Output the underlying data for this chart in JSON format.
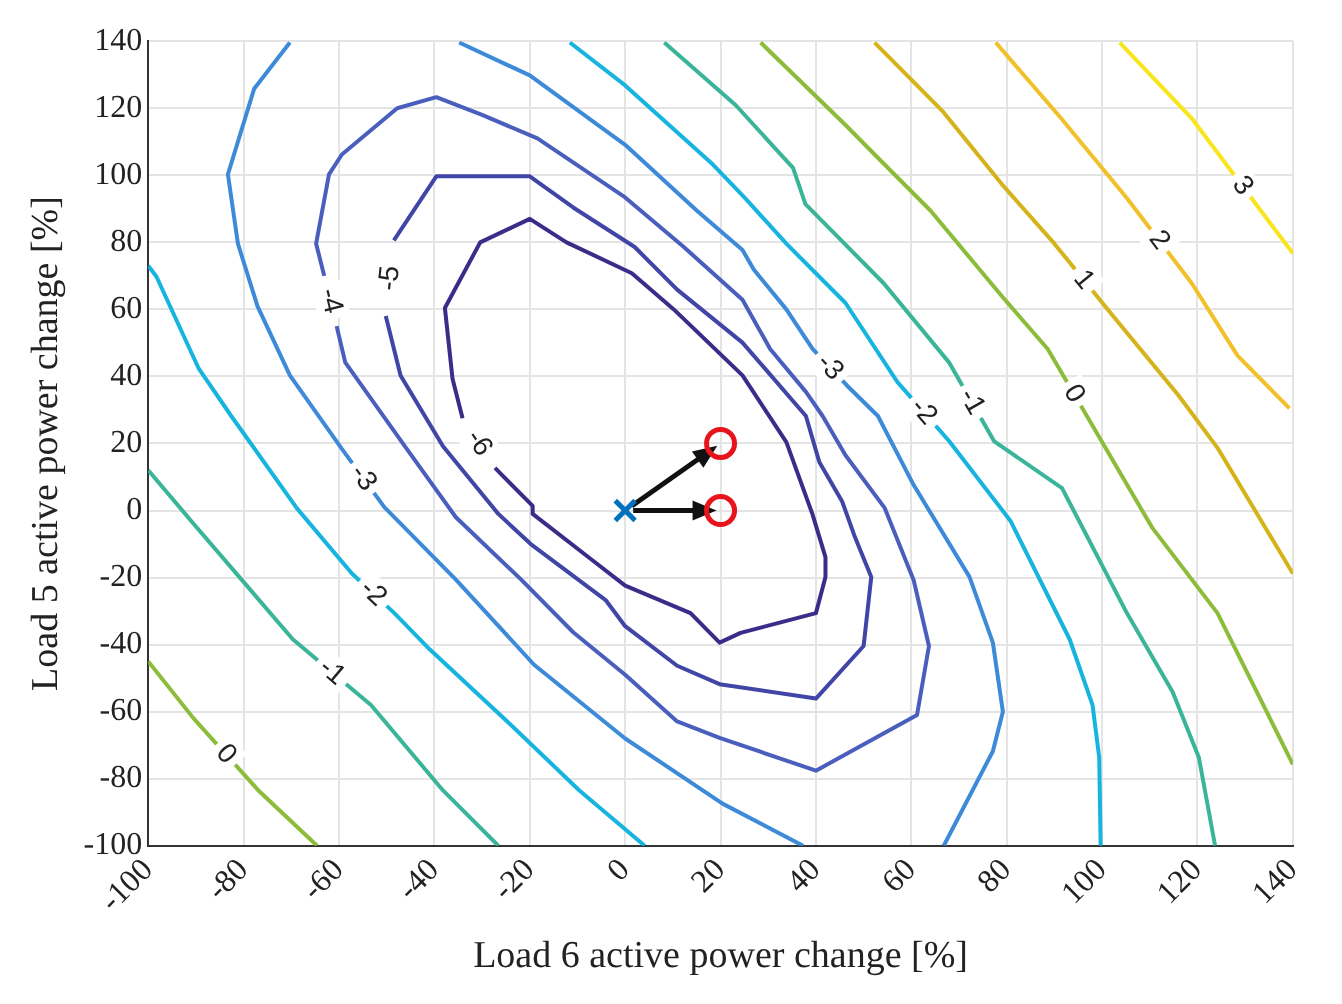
{
  "chart_data": {
    "type": "line",
    "xlabel": "Load 6 active power change [%]",
    "ylabel": "Load 5 active power change [%]",
    "xlim": [
      -100,
      140
    ],
    "ylim": [
      -100,
      140
    ],
    "xticks": [
      -100,
      -80,
      -60,
      -40,
      -20,
      0,
      20,
      40,
      60,
      80,
      100,
      120,
      140
    ],
    "yticks": [
      -100,
      -80,
      -60,
      -40,
      -20,
      0,
      20,
      40,
      60,
      80,
      100,
      120,
      140
    ],
    "grid": true,
    "legend": false,
    "marker": "none",
    "series": [
      {
        "name": "-6",
        "color": "#3b2c8a",
        "x": [
          -34.1,
          -36.2,
          -37.8,
          -30.4,
          -20,
          -12.3,
          1.4,
          10.2,
          24.6,
          33.8,
          39.3,
          42,
          42,
          40,
          24.2,
          19.8,
          13.7,
          0,
          -6.8,
          -19.4,
          -19.4,
          -27.3
        ],
        "values": [
          27.5,
          39.3,
          60.4,
          80,
          87,
          80,
          70.8,
          60,
          40.3,
          20.4,
          -1.2,
          -13.9,
          -19.8,
          -30.6,
          -36.5,
          -39.4,
          -30.6,
          -22.4,
          -14.9,
          -1,
          1.4,
          12.7
        ]
      },
      {
        "name": "-5",
        "color": "#4145a6",
        "x": [
          -48.5,
          -39.6,
          -20,
          -10.9,
          2,
          10.9,
          24.6,
          37.9,
          40.7,
          45.5,
          48.2,
          51.6,
          50,
          40,
          19.8,
          10.9,
          0,
          -4.1,
          -19.8,
          -26.6,
          -38.2,
          -47.1,
          -50.2
        ],
        "values": [
          80.6,
          99.7,
          99.7,
          90.4,
          78.6,
          65.9,
          50.1,
          28.2,
          14.5,
          2.7,
          -8,
          -19.8,
          -40.4,
          -56.1,
          -51.8,
          -46.3,
          -34.5,
          -26.7,
          -10,
          -1,
          19.2,
          40.3,
          58
        ]
      },
      {
        "name": "-4",
        "color": "#4a5fbd",
        "x": [
          -63.1,
          -64.8,
          -62.1,
          -59.4,
          -47.8,
          -39.6,
          -30,
          -18.4,
          0,
          12.3,
          24.6,
          30.4,
          37.9,
          41.4,
          46.2,
          54.4,
          60.5,
          63.7,
          61.2,
          40,
          19.8,
          10.9,
          0,
          -10.9,
          -21.8,
          -35.5,
          -46.4,
          -58.7,
          -60.5
        ],
        "values": [
          70,
          79.6,
          100.3,
          106.2,
          120,
          123.3,
          118,
          111,
          93.4,
          78.6,
          62.9,
          48.2,
          35.4,
          28.2,
          16.5,
          0.8,
          -20.8,
          -40.4,
          -61,
          -77.6,
          -67.8,
          -62.9,
          -49,
          -36.3,
          -20.6,
          -2,
          19.6,
          44.2,
          55
        ]
      },
      {
        "name": "-3",
        "color": "#3d8ad9",
        "x": [
          -70.3,
          -77.8,
          -83.3,
          -81.2,
          -77.1,
          -70.3,
          -59.4,
          -50.5,
          -35.5,
          -19.1,
          0,
          20.5,
          37.3
        ],
        "values": [
          139.6,
          125.8,
          100.3,
          79.6,
          61,
          40.3,
          18.4,
          1,
          -20.6,
          -46,
          -68,
          -87.5,
          -100
        ]
      },
      {
        "name": "-3",
        "color": "#3d8ad9",
        "x": [
          -34.8,
          -20,
          0,
          15,
          24.6,
          27,
          33.8,
          39.3,
          46.5,
          53,
          60.5,
          72.2,
          77.1,
          79.2,
          77.1,
          66.8
        ],
        "values": [
          139.6,
          129.8,
          109.1,
          89.5,
          77.7,
          71.8,
          60,
          48.2,
          37.3,
          28.2,
          7.6,
          -19.8,
          -39.4,
          -60,
          -71.8,
          -100
        ]
      },
      {
        "name": "-2",
        "color": "#17b4e0",
        "x": [
          -100,
          -98.3,
          -89.4,
          -82.6,
          -68.9,
          -57.3,
          -48.4,
          -41,
          -24,
          -9.6,
          4.1
        ],
        "values": [
          73,
          69.8,
          42.3,
          28.2,
          0.8,
          -18.8,
          -30.6,
          -41.4,
          -63.9,
          -83.5,
          -100
        ]
      },
      {
        "name": "-2",
        "color": "#17b4e0",
        "x": [
          -11.6,
          0,
          18.4,
          25,
          33.8,
          46.2,
          57.1,
          68,
          80.8,
          93.2,
          98,
          99.4,
          99.7
        ],
        "values": [
          139.6,
          126.8,
          103.2,
          93.4,
          79.6,
          61.9,
          38.3,
          20.6,
          -3.1,
          -38.4,
          -58,
          -73.7,
          -100
        ]
      },
      {
        "name": "-1",
        "color": "#3bb59a",
        "x": [
          -100,
          -91,
          -69.7,
          -53.3,
          -38.2,
          -26.6
        ],
        "values": [
          12,
          -3.1,
          -38.4,
          -58,
          -83.5,
          -100
        ]
      },
      {
        "name": "-1",
        "color": "#3bb59a",
        "x": [
          8.2,
          23.2,
          35.2,
          37.8,
          54.2,
          67.9,
          77.4,
          91.6,
          105.2,
          114.8,
          120.3,
          123.7
        ],
        "values": [
          139.6,
          120.9,
          102.2,
          91.4,
          67.8,
          44.2,
          20.6,
          6.7,
          -30.6,
          -54.1,
          -73.7,
          -100
        ]
      },
      {
        "name": "0",
        "color": "#8cbc3a",
        "x": [
          -100,
          -90.5,
          -76.9,
          -64.6
        ],
        "values": [
          -45,
          -62,
          -83.5,
          -100
        ]
      },
      {
        "name": "0",
        "color": "#8cbc3a",
        "x": [
          28.4,
          46.2,
          52.3,
          64,
          79,
          88.6,
          99.6,
          110.5,
          124.2,
          133.8,
          140
        ],
        "values": [
          139.6,
          115,
          106.2,
          89.5,
          63.9,
          48.2,
          21.4,
          -5.1,
          -30.6,
          -58,
          -75.7
        ]
      },
      {
        "name": "1",
        "color": "#d4b41a",
        "x": [
          52.3,
          66.7,
          79,
          90,
          102.3,
          116,
          124.2,
          140
        ],
        "values": [
          139.6,
          118.9,
          97.3,
          79.6,
          58,
          34.4,
          18.7,
          -18.8
        ]
      },
      {
        "name": "2",
        "color": "#f2c02a",
        "x": [
          77.7,
          91.4,
          105.1,
          118.8,
          128.4,
          139.3
        ],
        "values": [
          139.6,
          117,
          93.4,
          67.8,
          46.2,
          30.5
        ]
      },
      {
        "name": "3",
        "color": "#f8e51c",
        "x": [
          103.7,
          118.8,
          140
        ],
        "values": [
          139.6,
          117,
          76.7
        ]
      },
      {
        "type": "scatter",
        "marker": "cross",
        "color": "#0072bd",
        "x": [
          0
        ],
        "values": [
          0
        ]
      },
      {
        "type": "scatter",
        "marker": "circle",
        "color": "#e8141b",
        "x": [
          20,
          20
        ],
        "values": [
          20,
          0
        ]
      }
    ]
  }
}
